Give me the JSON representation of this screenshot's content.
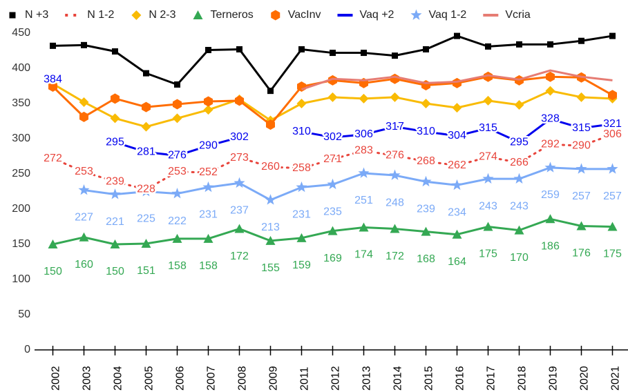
{
  "chart_data": {
    "type": "line",
    "categories": [
      "2002",
      "2003",
      "2004",
      "2005",
      "2006",
      "2007",
      "2008",
      "2009",
      "2011",
      "2012",
      "2013",
      "2014",
      "2015",
      "2016",
      "2017",
      "2018",
      "2019",
      "2020",
      "2021"
    ],
    "ylim": [
      0,
      450
    ],
    "yticks": [
      0,
      50,
      100,
      150,
      200,
      250,
      300,
      350,
      400,
      450
    ],
    "grid": false,
    "legend": "top",
    "series": [
      {
        "name": "N +3",
        "color": "#000000",
        "marker": "square",
        "line_style": "solid",
        "labels": "none",
        "values": [
          432,
          433,
          424,
          393,
          377,
          426,
          427,
          368,
          427,
          422,
          422,
          418,
          427,
          446,
          431,
          434,
          434,
          439,
          446
        ]
      },
      {
        "name": "N 1-2",
        "color": "#e8453c",
        "marker": "none",
        "line_style": "dotted",
        "labels": "center",
        "values": [
          272,
          253,
          239,
          228,
          253,
          252,
          273,
          260,
          258,
          271,
          283,
          276,
          268,
          262,
          274,
          266,
          292,
          290,
          306
        ]
      },
      {
        "name": "N 2-3",
        "color": "#f9bb04",
        "marker": "diamond",
        "line_style": "solid",
        "labels": "none",
        "values": [
          378,
          352,
          329,
          317,
          329,
          341,
          356,
          326,
          350,
          359,
          357,
          359,
          350,
          344,
          354,
          348,
          368,
          359,
          357
        ]
      },
      {
        "name": "Terneros",
        "color": "#34a853",
        "marker": "triangle",
        "line_style": "solid",
        "labels": "below",
        "values": [
          150,
          160,
          150,
          151,
          158,
          158,
          172,
          155,
          159,
          169,
          174,
          172,
          168,
          164,
          175,
          170,
          186,
          176,
          175
        ]
      },
      {
        "name": "VacInv",
        "color": "#ff6d01",
        "marker": "hexagon",
        "line_style": "solid",
        "labels": "none",
        "values": [
          374,
          331,
          357,
          345,
          349,
          353,
          354,
          320,
          374,
          383,
          379,
          385,
          376,
          379,
          388,
          383,
          388,
          387,
          362
        ]
      },
      {
        "name": "Vaq +2",
        "color": "#0000ee",
        "marker": "none",
        "line_style": "solid",
        "labels": "center",
        "values": [
          384,
          null,
          295,
          281,
          276,
          290,
          302,
          null,
          310,
          302,
          306,
          317,
          310,
          304,
          315,
          295,
          328,
          315,
          321
        ]
      },
      {
        "name": "Vaq 1-2",
        "color": "#7baaf7",
        "marker": "star",
        "line_style": "solid",
        "labels": "below",
        "values": [
          null,
          227,
          221,
          225,
          222,
          231,
          237,
          213,
          231,
          235,
          251,
          248,
          239,
          234,
          243,
          243,
          259,
          257,
          257
        ]
      },
      {
        "name": "Vcria",
        "color": "#e67c73",
        "marker": "none",
        "line_style": "solid",
        "labels": "none",
        "values": [
          null,
          null,
          null,
          null,
          null,
          null,
          null,
          null,
          370,
          385,
          383,
          388,
          379,
          381,
          390,
          384,
          397,
          388,
          383
        ]
      }
    ]
  }
}
